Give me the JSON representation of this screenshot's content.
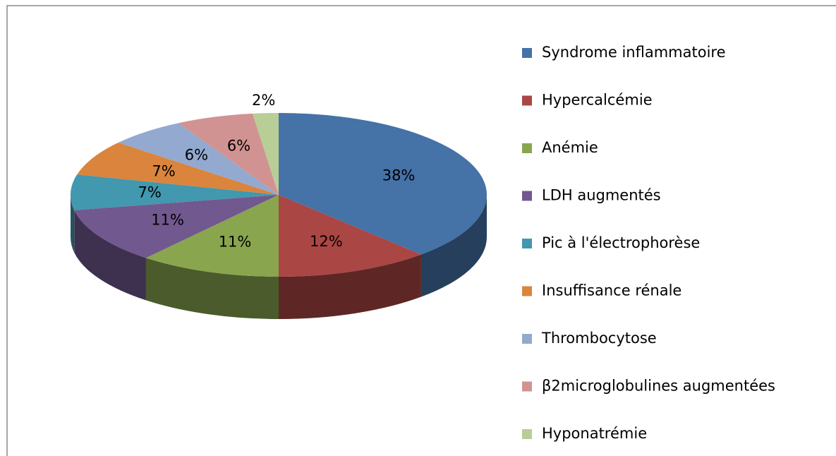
{
  "chart_data": {
    "type": "pie3d",
    "categories": [
      "Syndrome inflammatoire",
      "Hypercalcémie",
      "Anémie",
      "LDH augmentés",
      "Pic à l'électrophorèse",
      "Insuffisance rénale",
      "Thrombocytose",
      "β2microglobulines augmentées",
      "Hyponatrémie"
    ],
    "values": [
      38,
      12,
      11,
      11,
      7,
      7,
      6,
      6,
      2
    ],
    "value_labels": [
      "38%",
      "12%",
      "11%",
      "11%",
      "7%",
      "7%",
      "6%",
      "6%",
      "2%"
    ],
    "colors": [
      "#4572a7",
      "#aa4643",
      "#89a54e",
      "#71588f",
      "#4198af",
      "#db843d",
      "#93a9cf",
      "#d19392",
      "#b9cd96"
    ],
    "legend": "right"
  }
}
